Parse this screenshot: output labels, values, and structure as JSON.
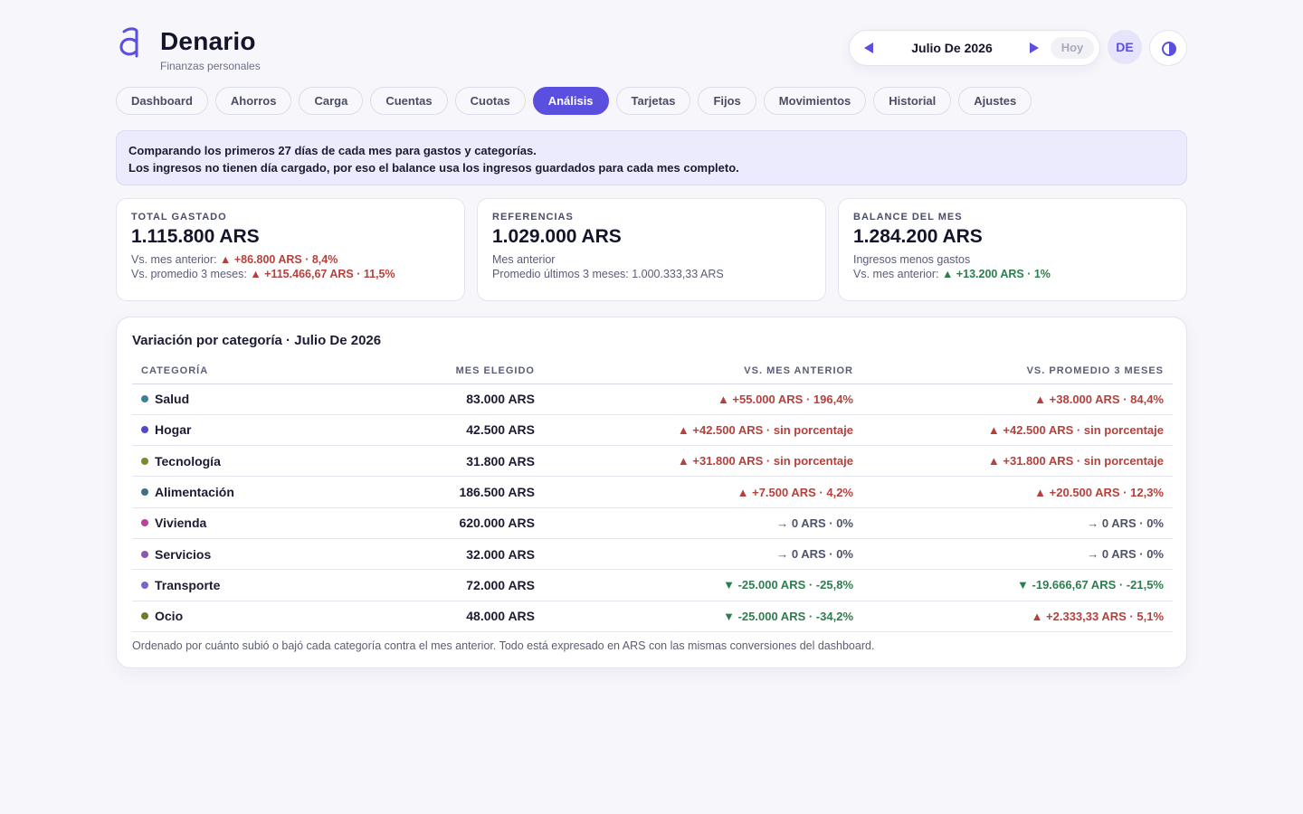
{
  "app": {
    "name": "Denario",
    "subtitle": "Finanzas personales"
  },
  "header": {
    "month": "Julio De 2026",
    "today": "Hoy",
    "avatar_initials": "DE",
    "accent": "#5b4fe0"
  },
  "tabs": [
    {
      "label": "Dashboard"
    },
    {
      "label": "Ahorros"
    },
    {
      "label": "Carga"
    },
    {
      "label": "Cuentas"
    },
    {
      "label": "Cuotas"
    },
    {
      "label": "Análisis",
      "active": true
    },
    {
      "label": "Tarjetas"
    },
    {
      "label": "Fijos"
    },
    {
      "label": "Movimientos"
    },
    {
      "label": "Historial"
    },
    {
      "label": "Ajustes"
    }
  ],
  "notice": {
    "line1": "Comparando los primeros 27 días de cada mes para gastos y categorías.",
    "line2": "Los ingresos no tienen día cargado, por eso el balance usa los ingresos guardados para cada mes completo."
  },
  "cards": {
    "spent": {
      "label": "TOTAL GASTADO",
      "value": "1.115.800 ARS",
      "line1_prefix": "Vs. mes anterior:",
      "line1_delta": "▲ +86.800 ARS · 8,4%",
      "line2_prefix": "Vs. promedio 3 meses:",
      "line2_delta": "▲ +115.466,67 ARS · 11,5%"
    },
    "refs": {
      "label": "REFERENCIAS",
      "value": "1.029.000 ARS",
      "line1": "Mes anterior",
      "line2": "Promedio últimos 3 meses: 1.000.333,33 ARS"
    },
    "balance": {
      "label": "BALANCE DEL MES",
      "value": "1.284.200 ARS",
      "line1": "Ingresos menos gastos",
      "line2_prefix": "Vs. mes anterior:",
      "line2_delta": "▲ +13.200 ARS · 1%"
    }
  },
  "table": {
    "title": "Variación por categoría · Julio De 2026",
    "headers": {
      "category": "CATEGORÍA",
      "month": "MES ELEGIDO",
      "vs_prev": "VS. MES ANTERIOR",
      "vs_avg": "VS. PROMEDIO 3 MESES"
    },
    "rows": [
      {
        "name": "Salud",
        "color": "#3f7f9a",
        "value": "83.000 ARS",
        "vs_prev": "▲ +55.000 ARS · 196,4%",
        "prev_dir": "up",
        "vs_avg": "▲ +38.000 ARS · 84,4%",
        "avg_dir": "up"
      },
      {
        "name": "Hogar",
        "color": "#5048c9",
        "value": "42.500 ARS",
        "vs_prev": "▲ +42.500 ARS · sin porcentaje",
        "prev_dir": "up",
        "vs_avg": "▲ +42.500 ARS · sin porcentaje",
        "avg_dir": "up"
      },
      {
        "name": "Tecnología",
        "color": "#7a8a2e",
        "value": "31.800 ARS",
        "vs_prev": "▲ +31.800 ARS · sin porcentaje",
        "prev_dir": "up",
        "vs_avg": "▲ +31.800 ARS · sin porcentaje",
        "avg_dir": "up"
      },
      {
        "name": "Alimentación",
        "color": "#3f7080",
        "value": "186.500 ARS",
        "vs_prev": "▲ +7.500 ARS · 4,2%",
        "prev_dir": "up",
        "vs_avg": "▲ +20.500 ARS · 12,3%",
        "avg_dir": "up"
      },
      {
        "name": "Vivienda",
        "color": "#b8449a",
        "value": "620.000 ARS",
        "vs_prev": "→ 0 ARS · 0%",
        "prev_dir": "flat",
        "vs_avg": "→ 0 ARS · 0%",
        "avg_dir": "flat"
      },
      {
        "name": "Servicios",
        "color": "#8f55a8",
        "value": "32.000 ARS",
        "vs_prev": "→ 0 ARS · 0%",
        "prev_dir": "flat",
        "vs_avg": "→ 0 ARS · 0%",
        "avg_dir": "flat"
      },
      {
        "name": "Transporte",
        "color": "#7a66c9",
        "value": "72.000 ARS",
        "vs_prev": "▼ -25.000 ARS · -25,8%",
        "prev_dir": "down",
        "vs_avg": "▼ -19.666,67 ARS · -21,5%",
        "avg_dir": "down"
      },
      {
        "name": "Ocio",
        "color": "#6f7a34",
        "value": "48.000 ARS",
        "vs_prev": "▼ -25.000 ARS · -34,2%",
        "prev_dir": "down",
        "vs_avg": "▲ +2.333,33 ARS · 5,1%",
        "avg_dir": "up"
      }
    ],
    "footer": "Ordenado por cuánto subió o bajó cada categoría contra el mes anterior. Todo está expresado en ARS con las mismas conversiones del dashboard."
  }
}
